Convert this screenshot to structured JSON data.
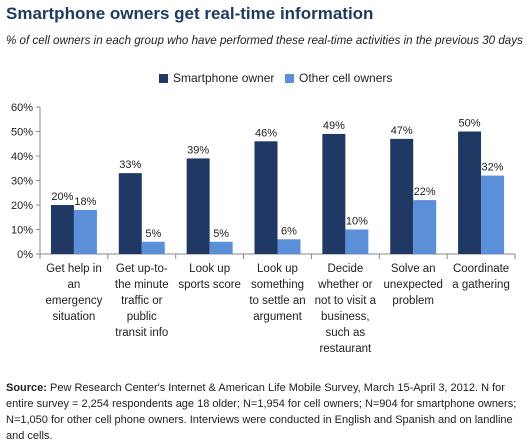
{
  "title": "Smartphone owners get real-time information",
  "subtitle": "% of cell owners in each group who have performed these real-time activities in the previous 30 days",
  "legend": [
    {
      "name": "Smartphone owner",
      "color": "#1f3864"
    },
    {
      "name": "Other cell owners",
      "color": "#5b8fd9"
    }
  ],
  "source": {
    "label": "Source:",
    "text": "Pew Research Center's Internet & American Life Mobile Survey, March 15-April 3, 2012. N for entire survey = 2,254 respondents age 18 older; N=1,954 for cell owners; N=904 for smartphone owners; N=1,050 for other cell phone owners. Interviews were conducted in English and Spanish and on landline and cells."
  },
  "chart_data": {
    "type": "bar",
    "categories": [
      "Get help in an emergency situation",
      "Get up-to-the minute traffic or public transit info",
      "Look up sports score",
      "Look up something to settle an argument",
      "Decide whether or not to visit a business, such as restaurant",
      "Solve an unexpected problem",
      "Coordinate a gathering"
    ],
    "category_lines": [
      [
        "Get help in",
        "an",
        "emergency",
        "situation"
      ],
      [
        "Get up-to-",
        "the minute",
        "traffic or",
        "public",
        "transit info"
      ],
      [
        "Look up",
        "sports score"
      ],
      [
        "Look up",
        "something",
        "to settle an",
        "argument"
      ],
      [
        "Decide",
        "whether or",
        "not to visit a",
        "business,",
        "such as",
        "restaurant"
      ],
      [
        "Solve an",
        "unexpected",
        "problem"
      ],
      [
        "Coordinate",
        "a gathering"
      ]
    ],
    "series": [
      {
        "name": "Smartphone owner",
        "values": [
          20,
          33,
          39,
          46,
          49,
          47,
          50
        ],
        "color": "#1f3864"
      },
      {
        "name": "Other cell owners",
        "values": [
          18,
          5,
          5,
          6,
          10,
          22,
          32
        ],
        "color": "#5b8fd9"
      }
    ],
    "ylim": [
      0,
      60
    ],
    "yticks": [
      "0%",
      "10%",
      "20%",
      "30%",
      "40%",
      "50%",
      "60%"
    ],
    "value_suffix": "%",
    "grid": false,
    "legend_position": "top-center"
  }
}
